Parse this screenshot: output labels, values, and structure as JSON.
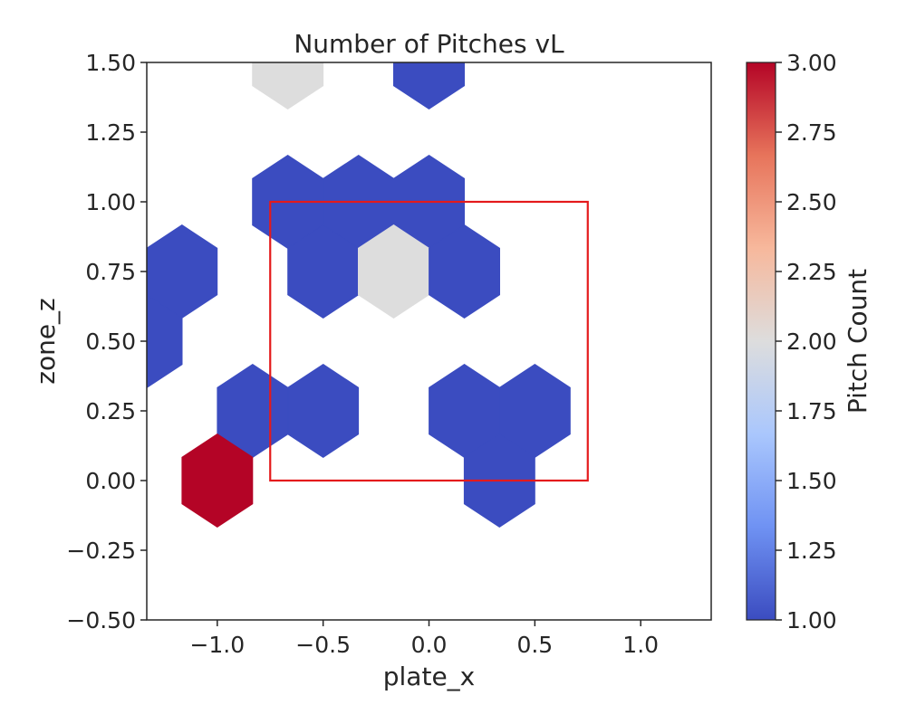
{
  "chart_data": {
    "type": "heatmap",
    "subtype": "hexbin",
    "title": "Number of Pitches vL",
    "xlabel": "plate_x",
    "ylabel": "zone_z",
    "xlim": [
      -1.333,
      1.333
    ],
    "ylim": [
      -0.5,
      1.5
    ],
    "xticks": [
      -1.0,
      -0.5,
      0.0,
      0.5,
      1.0
    ],
    "xtick_labels": [
      "−1.0",
      "−0.5",
      "0.0",
      "0.5",
      "1.0"
    ],
    "yticks": [
      -0.5,
      -0.25,
      0.0,
      0.25,
      0.5,
      0.75,
      1.0,
      1.25,
      1.5
    ],
    "ytick_labels": [
      "−0.50",
      "−0.25",
      "0.00",
      "0.25",
      "0.50",
      "0.75",
      "1.00",
      "1.25",
      "1.50"
    ],
    "hex_radius_y": 0.167,
    "hex_half_width_x": 0.1667,
    "cells": [
      {
        "x": -0.667,
        "y": 1.5,
        "count": 2
      },
      {
        "x": 0.0,
        "y": 1.5,
        "count": 1
      },
      {
        "x": -0.667,
        "y": 1.0,
        "count": 1
      },
      {
        "x": -0.333,
        "y": 1.0,
        "count": 1
      },
      {
        "x": 0.0,
        "y": 1.0,
        "count": 1
      },
      {
        "x": -1.167,
        "y": 0.75,
        "count": 1
      },
      {
        "x": -0.5,
        "y": 0.75,
        "count": 1
      },
      {
        "x": -0.167,
        "y": 0.75,
        "count": 2
      },
      {
        "x": 0.167,
        "y": 0.75,
        "count": 1
      },
      {
        "x": -1.333,
        "y": 0.5,
        "count": 1
      },
      {
        "x": -0.833,
        "y": 0.25,
        "count": 1
      },
      {
        "x": -0.5,
        "y": 0.25,
        "count": 1
      },
      {
        "x": 0.167,
        "y": 0.25,
        "count": 1
      },
      {
        "x": 0.5,
        "y": 0.25,
        "count": 1
      },
      {
        "x": -1.0,
        "y": 0.0,
        "count": 3
      },
      {
        "x": 0.333,
        "y": 0.0,
        "count": 1
      }
    ],
    "strike_zone": {
      "x": [
        -0.75,
        0.75
      ],
      "y": [
        0.0,
        1.0
      ],
      "color": "#e41a1c"
    },
    "colorbar": {
      "label": "Pitch Count",
      "colormap": "coolwarm",
      "range": [
        1.0,
        3.0
      ],
      "ticks": [
        1.0,
        1.25,
        1.5,
        1.75,
        2.0,
        2.25,
        2.5,
        2.75,
        3.0
      ],
      "tick_labels": [
        "1.00",
        "1.25",
        "1.50",
        "1.75",
        "2.00",
        "2.25",
        "2.50",
        "2.75",
        "3.00"
      ],
      "stops": [
        "#3b4cc0",
        "#6f92f3",
        "#aac7fd",
        "#dddddd",
        "#f7b89c",
        "#e7745b",
        "#b40426"
      ]
    },
    "grid": false,
    "legend": "none"
  }
}
